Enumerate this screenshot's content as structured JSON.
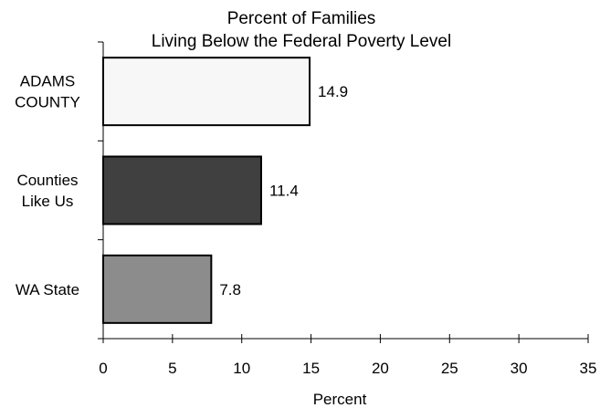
{
  "chart_data": {
    "type": "bar",
    "orientation": "horizontal",
    "title_lines": [
      "Percent of Families",
      "Living Below the Federal Poverty Level"
    ],
    "categories": [
      {
        "lines": [
          "ADAMS",
          "COUNTY"
        ],
        "value": 14.9,
        "value_label": "14.9",
        "color": "#f7f7f7"
      },
      {
        "lines": [
          "Counties",
          "Like Us"
        ],
        "value": 11.4,
        "value_label": "11.4",
        "color": "#404040"
      },
      {
        "lines": [
          "WA State"
        ],
        "value": 7.8,
        "value_label": "7.8",
        "color": "#8c8c8c"
      }
    ],
    "xlabel": "Percent",
    "ylabel": "",
    "xlim": [
      0,
      35
    ],
    "xticks": [
      0,
      5,
      10,
      15,
      20,
      25,
      30,
      35
    ],
    "grid": false,
    "legend": "none"
  }
}
